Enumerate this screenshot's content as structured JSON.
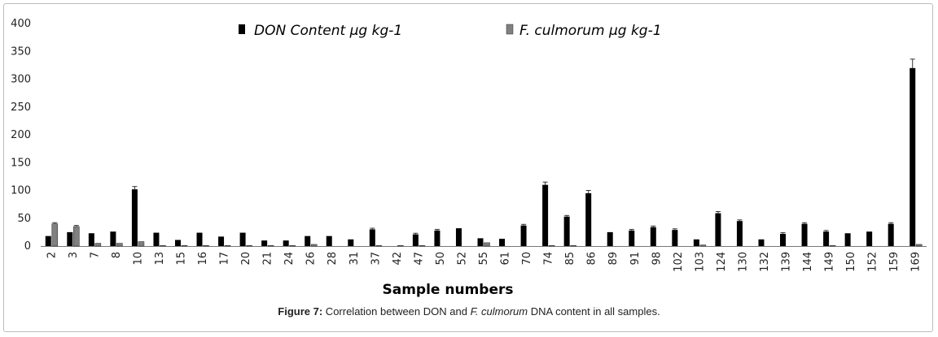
{
  "chart_data": {
    "type": "bar",
    "xlabel": "Sample numbers",
    "ylabel": "",
    "ylim": [
      0,
      400
    ],
    "yticks": [
      0,
      50,
      100,
      150,
      200,
      250,
      300,
      350,
      400
    ],
    "grid": false,
    "legend_position": "top",
    "categories": [
      "2",
      "3",
      "7",
      "8",
      "10",
      "13",
      "15",
      "16",
      "17",
      "20",
      "21",
      "24",
      "26",
      "28",
      "31",
      "37",
      "42",
      "47",
      "50",
      "52",
      "55",
      "61",
      "70",
      "74",
      "85",
      "86",
      "89",
      "91",
      "98",
      "102",
      "103",
      "124",
      "130",
      "132",
      "139",
      "144",
      "149",
      "150",
      "152",
      "159",
      "169"
    ],
    "series": [
      {
        "name": "DON Content µg kg-1",
        "color": "#000000",
        "values": [
          18,
          25,
          23,
          26,
          102,
          24,
          11,
          24,
          17,
          24,
          10,
          10,
          18,
          18,
          12,
          30,
          0,
          21,
          28,
          32,
          14,
          13,
          37,
          110,
          53,
          95,
          25,
          28,
          34,
          29,
          12,
          59,
          45,
          12,
          22,
          40,
          26,
          23,
          26,
          40,
          320
        ],
        "errors": [
          0,
          0,
          0,
          0,
          5,
          0,
          0,
          0,
          0,
          0,
          0,
          0,
          0,
          0,
          0,
          2,
          0,
          2,
          2,
          0,
          0,
          0,
          2,
          5,
          2,
          5,
          0,
          2,
          2,
          2,
          0,
          3,
          2,
          0,
          2,
          2,
          2,
          0,
          0,
          2,
          16
        ]
      },
      {
        "name": "F. culmorum  µg kg-1",
        "color": "#808080",
        "values": [
          40,
          35,
          5,
          5,
          8,
          1,
          1,
          1,
          1,
          1,
          1,
          1,
          3,
          0,
          0,
          1,
          1,
          1,
          0,
          0,
          6,
          0,
          0,
          1,
          1,
          0,
          0,
          0,
          0,
          0,
          2,
          0,
          0,
          0,
          0,
          0,
          1,
          0,
          0,
          0,
          3
        ],
        "errors": [
          2,
          2,
          0,
          0,
          0,
          0,
          0,
          0,
          0,
          0,
          0,
          0,
          0,
          0,
          0,
          0,
          0,
          0,
          0,
          0,
          0,
          0,
          0,
          0,
          0,
          0,
          0,
          0,
          0,
          0,
          0,
          0,
          0,
          0,
          0,
          0,
          0,
          0,
          0,
          0,
          0
        ]
      }
    ]
  },
  "legend": {
    "don_label_a": "DON Content ",
    "don_label_b": "µg kg-1",
    "fc_label_a": "F. culmorum ",
    "fc_label_b": " µg kg-1"
  },
  "caption": {
    "fig": "Figure 7:",
    "text1": " Correlation between DON and ",
    "species": "F. culmorum",
    "text2": " DNA content in all samples."
  }
}
